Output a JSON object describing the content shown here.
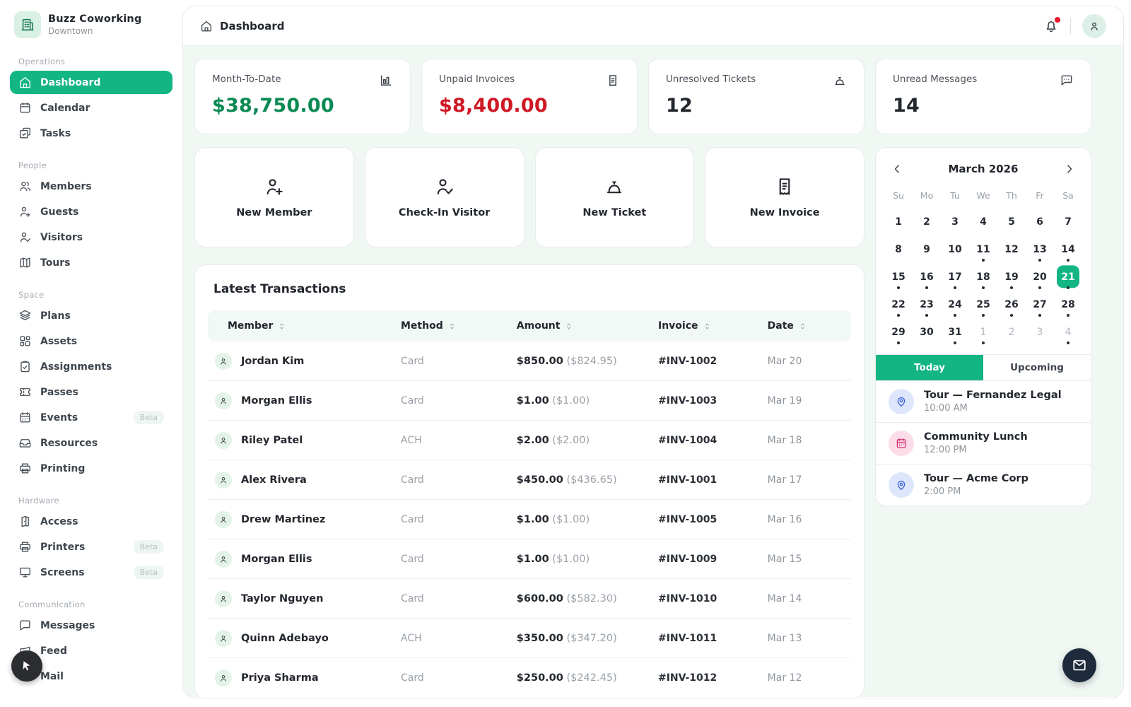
{
  "app": {
    "name": "Buzz Coworking",
    "location": "Downtown",
    "logo_icon": "building-icon"
  },
  "accent_color": "#13b583",
  "sidebar": {
    "sections": [
      {
        "label": "Operations",
        "items": [
          {
            "label": "Dashboard",
            "icon": "home-icon",
            "active": true
          },
          {
            "label": "Calendar",
            "icon": "calendar-icon"
          },
          {
            "label": "Tasks",
            "icon": "tasks-icon"
          }
        ]
      },
      {
        "label": "People",
        "items": [
          {
            "label": "Members",
            "icon": "users-icon"
          },
          {
            "label": "Guests",
            "icon": "user-plus-icon"
          },
          {
            "label": "Visitors",
            "icon": "user-check-icon"
          },
          {
            "label": "Tours",
            "icon": "map-icon"
          }
        ]
      },
      {
        "label": "Space",
        "items": [
          {
            "label": "Plans",
            "icon": "layers-icon"
          },
          {
            "label": "Assets",
            "icon": "grid-icon"
          },
          {
            "label": "Assignments",
            "icon": "clipboard-icon"
          },
          {
            "label": "Passes",
            "icon": "ticket-icon"
          },
          {
            "label": "Events",
            "icon": "calendar-dots-icon",
            "badge": "Beta"
          },
          {
            "label": "Resources",
            "icon": "inbox-icon"
          },
          {
            "label": "Printing",
            "icon": "printer-icon"
          }
        ]
      },
      {
        "label": "Hardware",
        "items": [
          {
            "label": "Access",
            "icon": "door-icon"
          },
          {
            "label": "Printers",
            "icon": "printer-icon",
            "badge": "Beta"
          },
          {
            "label": "Screens",
            "icon": "monitor-icon",
            "badge": "Beta"
          }
        ]
      },
      {
        "label": "Communication",
        "items": [
          {
            "label": "Messages",
            "icon": "chat-icon"
          },
          {
            "label": "Feed",
            "icon": "megaphone-icon"
          },
          {
            "label": "Mail",
            "icon": "mail-icon"
          }
        ]
      }
    ]
  },
  "header": {
    "title": "Dashboard",
    "title_icon": "home-icon",
    "notification_dot": true
  },
  "stats": [
    {
      "label": "Month-To-Date",
      "value": "$38,750.00",
      "value_color": "#0a8a52",
      "icon": "bar-chart-icon"
    },
    {
      "label": "Unpaid Invoices",
      "value": "$8,400.00",
      "value_color": "#cf1824",
      "icon": "receipt-icon"
    },
    {
      "label": "Unresolved Tickets",
      "value": "12",
      "value_color": "#23272e",
      "icon": "service-bell-icon"
    },
    {
      "label": "Unread Messages",
      "value": "14",
      "value_color": "#23272e",
      "icon": "chat-dots-icon"
    }
  ],
  "quick_actions": [
    {
      "label": "New Member",
      "icon": "user-plus-icon"
    },
    {
      "label": "Check-In Visitor",
      "icon": "user-check-icon"
    },
    {
      "label": "New Ticket",
      "icon": "service-bell-icon"
    },
    {
      "label": "New Invoice",
      "icon": "receipt-icon"
    }
  ],
  "transactions": {
    "title": "Latest Transactions",
    "columns": [
      "Member",
      "Method",
      "Amount",
      "Invoice",
      "Date"
    ],
    "rows": [
      {
        "member": "Jordan Kim",
        "method": "Card",
        "amount": "$850.00",
        "net": "($824.95)",
        "invoice": "#INV-1002",
        "date": "Mar 20"
      },
      {
        "member": "Morgan Ellis",
        "method": "Card",
        "amount": "$1.00",
        "net": "($1.00)",
        "invoice": "#INV-1003",
        "date": "Mar 19"
      },
      {
        "member": "Riley Patel",
        "method": "ACH",
        "amount": "$2.00",
        "net": "($2.00)",
        "invoice": "#INV-1004",
        "date": "Mar 18"
      },
      {
        "member": "Alex Rivera",
        "method": "Card",
        "amount": "$450.00",
        "net": "($436.65)",
        "invoice": "#INV-1001",
        "date": "Mar 17"
      },
      {
        "member": "Drew Martinez",
        "method": "Card",
        "amount": "$1.00",
        "net": "($1.00)",
        "invoice": "#INV-1005",
        "date": "Mar 16"
      },
      {
        "member": "Morgan Ellis",
        "method": "Card",
        "amount": "$1.00",
        "net": "($1.00)",
        "invoice": "#INV-1009",
        "date": "Mar 15"
      },
      {
        "member": "Taylor Nguyen",
        "method": "Card",
        "amount": "$600.00",
        "net": "($582.30)",
        "invoice": "#INV-1010",
        "date": "Mar 14"
      },
      {
        "member": "Quinn Adebayo",
        "method": "ACH",
        "amount": "$350.00",
        "net": "($347.20)",
        "invoice": "#INV-1011",
        "date": "Mar 13"
      },
      {
        "member": "Priya Sharma",
        "method": "Card",
        "amount": "$250.00",
        "net": "($242.45)",
        "invoice": "#INV-1012",
        "date": "Mar 12"
      }
    ]
  },
  "calendar": {
    "month": "March 2026",
    "day_headers": [
      "Su",
      "Mo",
      "Tu",
      "We",
      "Th",
      "Fr",
      "Sa"
    ],
    "weeks": [
      [
        {
          "d": 1
        },
        {
          "d": 2
        },
        {
          "d": 3
        },
        {
          "d": 4
        },
        {
          "d": 5
        },
        {
          "d": 6
        },
        {
          "d": 7
        }
      ],
      [
        {
          "d": 8
        },
        {
          "d": 9
        },
        {
          "d": 10
        },
        {
          "d": 11,
          "dot": true
        },
        {
          "d": 12
        },
        {
          "d": 13,
          "dot": true
        },
        {
          "d": 14,
          "dot": true
        }
      ],
      [
        {
          "d": 15,
          "dot": true
        },
        {
          "d": 16,
          "dot": true
        },
        {
          "d": 17,
          "dot": true
        },
        {
          "d": 18,
          "dot": true
        },
        {
          "d": 19,
          "dot": true
        },
        {
          "d": 20,
          "dot": true
        },
        {
          "d": 21,
          "dot": true,
          "selected": true
        }
      ],
      [
        {
          "d": 22,
          "dot": true
        },
        {
          "d": 23,
          "dot": true
        },
        {
          "d": 24,
          "dot": true
        },
        {
          "d": 25,
          "dot": true
        },
        {
          "d": 26,
          "dot": true
        },
        {
          "d": 27,
          "dot": true
        },
        {
          "d": 28,
          "dot": true
        }
      ],
      [
        {
          "d": 29,
          "dot": true
        },
        {
          "d": 30
        },
        {
          "d": 31,
          "dot": true
        },
        {
          "d": 1,
          "muted": true,
          "dot": true
        },
        {
          "d": 2,
          "muted": true
        },
        {
          "d": 3,
          "muted": true
        },
        {
          "d": 4,
          "muted": true,
          "dot": true
        }
      ]
    ]
  },
  "schedule": {
    "tabs": [
      {
        "label": "Today",
        "active": true
      },
      {
        "label": "Upcoming",
        "active": false
      }
    ],
    "events": [
      {
        "title": "Tour — Fernandez Legal",
        "time": "10:00 AM",
        "icon": "map-pin-icon",
        "color": "blue"
      },
      {
        "title": "Community Lunch",
        "time": "12:00 PM",
        "icon": "calendar-event-icon",
        "color": "pink"
      },
      {
        "title": "Tour — Acme Corp",
        "time": "2:00 PM",
        "icon": "map-pin-icon",
        "color": "blue"
      }
    ]
  },
  "fabs": {
    "mail": {
      "icon": "mail-icon"
    },
    "cursor": {
      "icon": "cursor-icon"
    }
  }
}
